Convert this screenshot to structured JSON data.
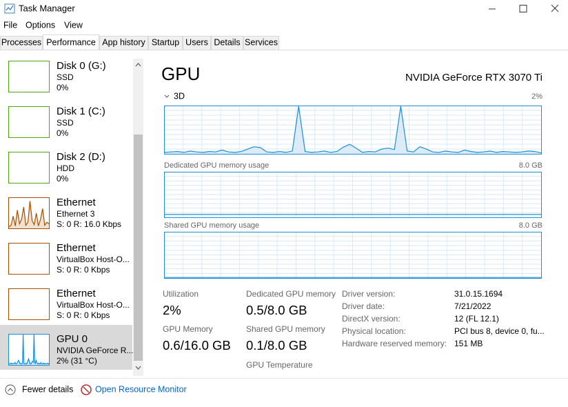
{
  "window": {
    "title": "Task Manager"
  },
  "menu": [
    "File",
    "Options",
    "View"
  ],
  "tabs": [
    "Processes",
    "Performance",
    "App history",
    "Startup",
    "Users",
    "Details",
    "Services"
  ],
  "sidebar": [
    {
      "name": "Disk 0 (G:)",
      "sub": "SSD",
      "value": "0%"
    },
    {
      "name": "Disk 1 (C:)",
      "sub": "SSD",
      "value": "0%"
    },
    {
      "name": "Disk 2 (D:)",
      "sub": "HDD",
      "value": "0%"
    },
    {
      "name": "Ethernet",
      "sub": "Ethernet 3",
      "value": "S: 0 R: 16.0 Kbps",
      "graph": {
        "ylim": [
          0,
          100
        ],
        "values": [
          5,
          10,
          40,
          8,
          60,
          15,
          30,
          70,
          10,
          20,
          90,
          25,
          12,
          50,
          8,
          30,
          65,
          10,
          20,
          15
        ]
      }
    },
    {
      "name": "Ethernet",
      "sub": "VirtualBox Host-O...",
      "value": "S: 0 R: 0 Kbps"
    },
    {
      "name": "Ethernet",
      "sub": "VirtualBox Host-O...",
      "value": "S: 0 R: 0 Kbps"
    },
    {
      "name": "GPU 0",
      "sub": "NVIDIA GeForce R...",
      "value": "2% (31 °C)"
    }
  ],
  "panel": {
    "title": "GPU",
    "device": "NVIDIA GeForce RTX 3070 Ti",
    "graphs": [
      {
        "label": "3D",
        "current": "2%",
        "ylim": [
          0,
          100
        ],
        "values": [
          3,
          4,
          5,
          3,
          6,
          4,
          3,
          5,
          4,
          8,
          4,
          3,
          5,
          10,
          15,
          13,
          4,
          3,
          5,
          3,
          6,
          100,
          5,
          3,
          4,
          6,
          3,
          5,
          14,
          20,
          12,
          3,
          5,
          4,
          10,
          12,
          9,
          100,
          6,
          4,
          15,
          10,
          4,
          3,
          6,
          4,
          3,
          8,
          5,
          3,
          4,
          6,
          3,
          5,
          4,
          3,
          4,
          6,
          5,
          2
        ]
      },
      {
        "label": "Dedicated GPU memory usage",
        "max": "8.0 GB",
        "ylim": [
          0,
          8
        ],
        "values": [
          0.5,
          0.5,
          0.5,
          0.5,
          0.5,
          0.5,
          0.5,
          0.5,
          0.5,
          0.5,
          0.5,
          0.5
        ]
      },
      {
        "label": "Shared GPU memory usage",
        "max": "8.0 GB",
        "ylim": [
          0,
          8
        ],
        "values": [
          0.1,
          0.1,
          0.1,
          0.1,
          0.1,
          0.1,
          0.1,
          0.1,
          0.1,
          0.1,
          0.1,
          0.1
        ]
      }
    ],
    "stats": [
      {
        "label": "Utilization",
        "value": "2%"
      },
      {
        "label": "GPU Memory",
        "value": "0.6/16.0 GB"
      },
      {
        "label": "Dedicated GPU memory",
        "value": "0.5/8.0 GB"
      },
      {
        "label": "Shared GPU memory",
        "value": "0.1/8.0 GB"
      },
      {
        "label": "GPU Temperature"
      }
    ],
    "details": [
      [
        "Driver version:",
        "31.0.15.1694"
      ],
      [
        "Driver date:",
        "7/21/2022"
      ],
      [
        "DirectX version:",
        "12 (FL 12.1)"
      ],
      [
        "Physical location:",
        "PCI bus 8, device 0, fu..."
      ],
      [
        "Hardware reserved memory:",
        "151 MB"
      ]
    ]
  },
  "footer": {
    "fewer": "Fewer details",
    "monitor": "Open Resource Monitor"
  }
}
